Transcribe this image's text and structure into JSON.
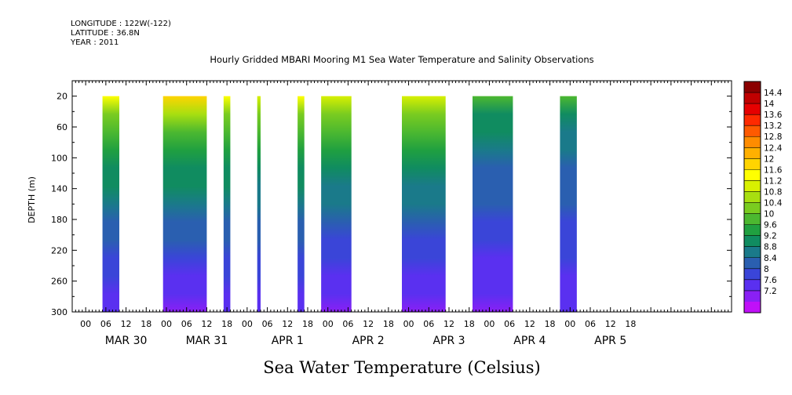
{
  "header": {
    "longitude": "LONGITUDE : 122W(-122)",
    "latitude": "LATITUDE : 36.8N",
    "year": "YEAR : 2011"
  },
  "chart_data": {
    "type": "heatmap",
    "title": "Hourly Gridded MBARI Mooring M1 Sea Water Temperature and Salinity Observations",
    "subtitle": "Sea Water Temperature (Celsius)",
    "ylabel": "DEPTH (m)",
    "y_inverted": true,
    "ylim": [
      0,
      300
    ],
    "y_ticks": [
      20,
      60,
      100,
      140,
      180,
      220,
      260,
      300
    ],
    "x_units": "hours since 2011-03-29 20:00",
    "xlim": [
      0,
      196
    ],
    "x_hour_ticks": [
      "00",
      "06",
      "12",
      "18",
      "00",
      "06",
      "12",
      "18",
      "00",
      "06",
      "12",
      "18",
      "00",
      "06",
      "12",
      "18",
      "00",
      "06",
      "12",
      "18",
      "00",
      "06",
      "12",
      "18",
      "00",
      "06",
      "12",
      "18"
    ],
    "x_day_labels": [
      "MAR 30",
      "MAR 31",
      "APR 1",
      "APR 2",
      "APR 3",
      "APR 4",
      "APR 5"
    ],
    "colorbar": {
      "levels": [
        "14.4",
        "14",
        "13.6",
        "13.2",
        "12.8",
        "12.4",
        "12",
        "11.6",
        "11.2",
        "10.8",
        "10.4",
        "10",
        "9.6",
        "9.2",
        "8.8",
        "8.4",
        "8",
        "7.6",
        "7.2"
      ],
      "colors": [
        "#8b0000",
        "#c00000",
        "#e60000",
        "#ff2a00",
        "#ff5a00",
        "#ff8c00",
        "#ffb000",
        "#ffd400",
        "#ffff00",
        "#d8f000",
        "#a8df10",
        "#7acc20",
        "#4cb830",
        "#20a040",
        "#108c60",
        "#1a7a8a",
        "#2a5fb0",
        "#3a45d8",
        "#5a30f0",
        "#8a20f5",
        "#c010f8"
      ]
    },
    "data_segments": [
      {
        "x_start": 9,
        "x_end": 14,
        "surface_temp": 11.6,
        "deep_temp": 7.5
      },
      {
        "x_start": 27,
        "x_end": 40,
        "surface_temp": 11.9,
        "deep_temp": 7.3
      },
      {
        "x_start": 45,
        "x_end": 47,
        "surface_temp": 11.5,
        "deep_temp": 7.5
      },
      {
        "x_start": 55,
        "x_end": 56,
        "surface_temp": 11.4,
        "deep_temp": 7.5
      },
      {
        "x_start": 67,
        "x_end": 69,
        "surface_temp": 11.5,
        "deep_temp": 7.5
      },
      {
        "x_start": 74,
        "x_end": 83,
        "surface_temp": 11.4,
        "deep_temp": 7.4
      },
      {
        "x_start": 98,
        "x_end": 111,
        "surface_temp": 11.3,
        "deep_temp": 7.4
      },
      {
        "x_start": 119,
        "x_end": 131,
        "surface_temp": 10.0,
        "deep_temp": 7.4
      },
      {
        "x_start": 145,
        "x_end": 150,
        "surface_temp": 9.8,
        "deep_temp": 7.5
      }
    ]
  }
}
